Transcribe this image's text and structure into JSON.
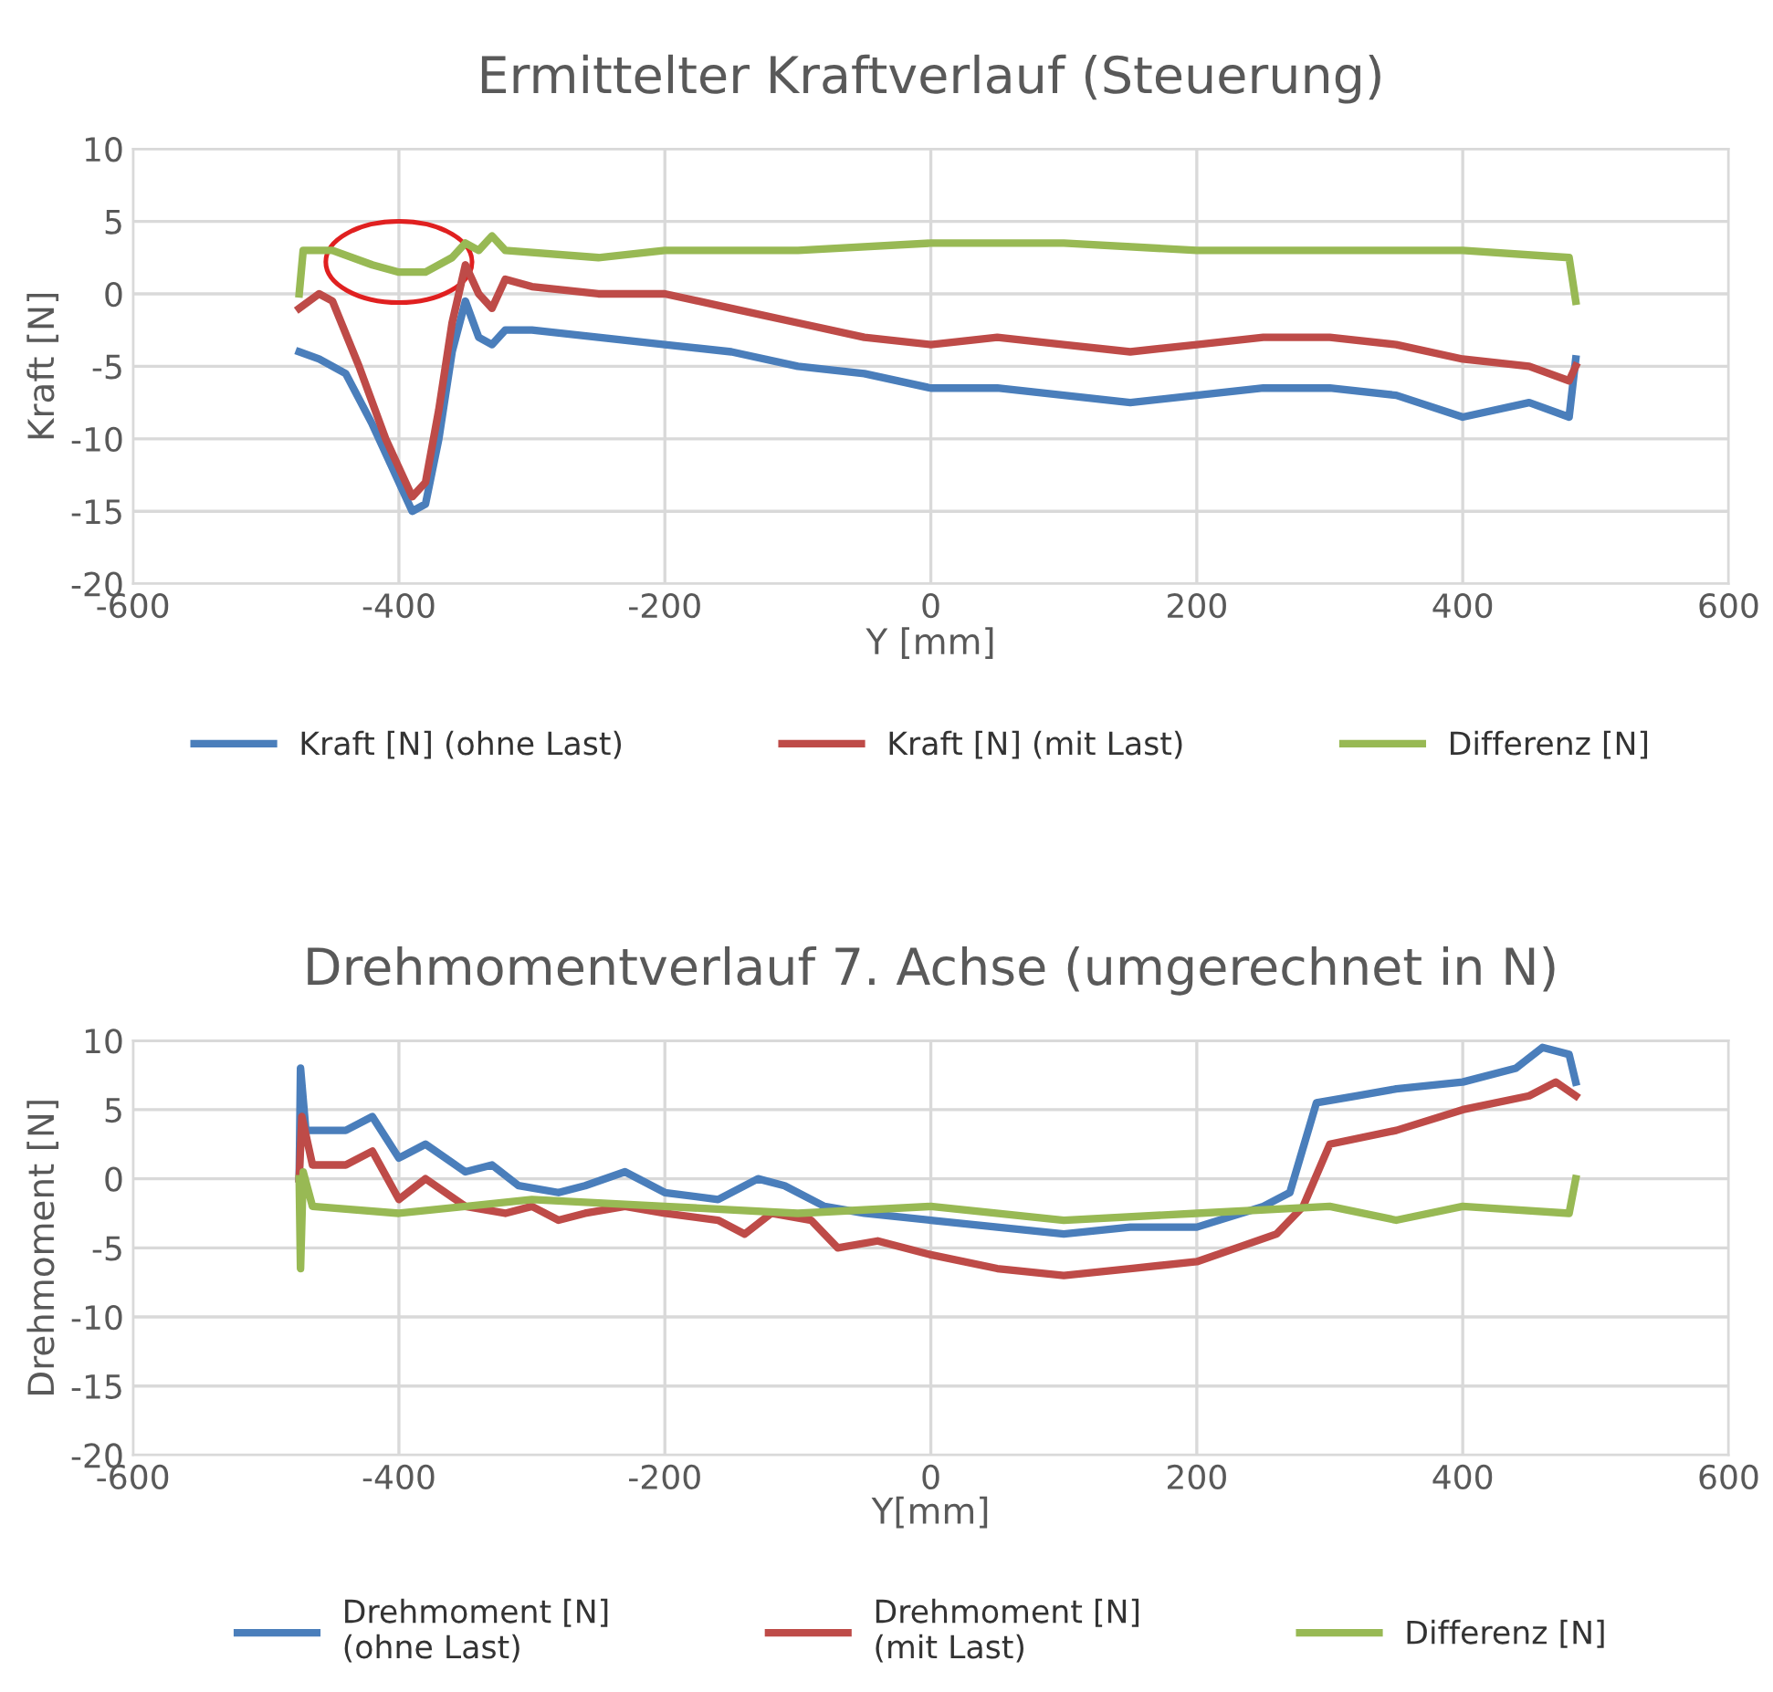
{
  "chart_data": [
    {
      "type": "line",
      "title": "Ermittelter Kraftverlauf (Steuerung)",
      "xlabel": "Y [mm]",
      "ylabel": "Kraft [N]",
      "xlim": [
        -600,
        600
      ],
      "xticks": [
        -600,
        -400,
        -200,
        0,
        200,
        400,
        600
      ],
      "ylim": [
        -20,
        10
      ],
      "yticks": [
        -20,
        -15,
        -10,
        -5,
        0,
        5,
        10
      ],
      "grid": true,
      "legend": "bottom",
      "marker": "none",
      "line_style": "solid",
      "series": [
        {
          "name": "Kraft [N] (ohne Last)",
          "color": "#4a7ebb",
          "x": [
            -475,
            -460,
            -440,
            -420,
            -400,
            -390,
            -380,
            -370,
            -360,
            -350,
            -340,
            -330,
            -320,
            -300,
            -250,
            -200,
            -150,
            -100,
            -50,
            0,
            50,
            100,
            150,
            200,
            250,
            300,
            350,
            400,
            450,
            480,
            485
          ],
          "values": [
            -4,
            -4.5,
            -5.5,
            -9,
            -13,
            -15,
            -14.5,
            -10,
            -4,
            -0.5,
            -3,
            -3.5,
            -2.5,
            -2.5,
            -3,
            -3.5,
            -4,
            -5,
            -5.5,
            -6.5,
            -6.5,
            -7,
            -7.5,
            -7,
            -6.5,
            -6.5,
            -7,
            -8.5,
            -7.5,
            -8.5,
            -4.5
          ]
        },
        {
          "name": "Kraft [N] (mit Last)",
          "color": "#be4b48",
          "x": [
            -475,
            -460,
            -450,
            -430,
            -410,
            -390,
            -380,
            -370,
            -360,
            -350,
            -340,
            -330,
            -320,
            -300,
            -250,
            -200,
            -150,
            -100,
            -50,
            0,
            50,
            100,
            150,
            200,
            250,
            300,
            350,
            400,
            450,
            480,
            485
          ],
          "values": [
            -1,
            0,
            -0.5,
            -5,
            -10,
            -14,
            -13,
            -8,
            -2,
            2,
            0,
            -1,
            1,
            0.5,
            0,
            0,
            -1,
            -2,
            -3,
            -3.5,
            -3,
            -3.5,
            -4,
            -3.5,
            -3,
            -3,
            -3.5,
            -4.5,
            -5,
            -6,
            -5
          ]
        },
        {
          "name": "Differenz [N]",
          "color": "#98b954",
          "x": [
            -475,
            -472,
            -450,
            -420,
            -400,
            -380,
            -360,
            -350,
            -340,
            -330,
            -320,
            -250,
            -200,
            -100,
            0,
            100,
            200,
            300,
            400,
            480,
            485
          ],
          "values": [
            0,
            3,
            3,
            2,
            1.5,
            1.5,
            2.5,
            3.5,
            3,
            4,
            3,
            2.5,
            3,
            3,
            3.5,
            3.5,
            3,
            3,
            3,
            2.5,
            -0.5
          ]
        }
      ]
    },
    {
      "type": "line",
      "title": "Drehmomentverlauf 7. Achse (umgerechnet in N)",
      "xlabel": "Y[mm]",
      "ylabel": "Drehmoment [N]",
      "xlim": [
        -600,
        600
      ],
      "xticks": [
        -600,
        -400,
        -200,
        0,
        200,
        400,
        600
      ],
      "ylim": [
        -20,
        10
      ],
      "yticks": [
        -20,
        -15,
        -10,
        -5,
        0,
        5,
        10
      ],
      "grid": true,
      "legend": "bottom",
      "marker": "none",
      "line_style": "solid",
      "series": [
        {
          "name": "Drehmoment [N]\n(ohne Last)",
          "color": "#4a7ebb",
          "x": [
            -475,
            -474,
            -470,
            -440,
            -420,
            -400,
            -380,
            -350,
            -330,
            -310,
            -280,
            -260,
            -230,
            -200,
            -160,
            -130,
            -110,
            -80,
            -50,
            0,
            50,
            100,
            150,
            200,
            250,
            270,
            290,
            320,
            350,
            400,
            440,
            460,
            480,
            485
          ],
          "values": [
            0,
            8,
            3.5,
            3.5,
            4.5,
            1.5,
            2.5,
            0.5,
            1,
            -0.5,
            -1,
            -0.5,
            0.5,
            -1,
            -1.5,
            0,
            -0.5,
            -2,
            -2.5,
            -3,
            -3.5,
            -4,
            -3.5,
            -3.5,
            -2,
            -1,
            5.5,
            6,
            6.5,
            7,
            8,
            9.5,
            9,
            7
          ]
        },
        {
          "name": "Drehmoment [N]\n(mit Last)",
          "color": "#be4b48",
          "x": [
            -475,
            -473,
            -465,
            -440,
            -420,
            -400,
            -380,
            -350,
            -320,
            -300,
            -280,
            -260,
            -230,
            -200,
            -160,
            -140,
            -120,
            -90,
            -70,
            -40,
            0,
            50,
            100,
            150,
            200,
            230,
            260,
            280,
            300,
            350,
            400,
            450,
            470,
            485
          ],
          "values": [
            0,
            4.5,
            1,
            1,
            2,
            -1.5,
            0,
            -2,
            -2.5,
            -2,
            -3,
            -2.5,
            -2,
            -2.5,
            -3,
            -4,
            -2.5,
            -3,
            -5,
            -4.5,
            -5.5,
            -6.5,
            -7,
            -6.5,
            -6,
            -5,
            -4,
            -2,
            2.5,
            3.5,
            5,
            6,
            7,
            6
          ]
        },
        {
          "name": "Differenz [N]",
          "color": "#98b954",
          "x": [
            -475,
            -474,
            -472,
            -465,
            -400,
            -300,
            -200,
            -100,
            0,
            100,
            200,
            300,
            350,
            400,
            480,
            485
          ],
          "values": [
            0,
            -6.5,
            0.5,
            -2,
            -2.5,
            -1.5,
            -2,
            -2.5,
            -2,
            -3,
            -2.5,
            -2,
            -3,
            -2,
            -2.5,
            0
          ]
        }
      ]
    }
  ]
}
